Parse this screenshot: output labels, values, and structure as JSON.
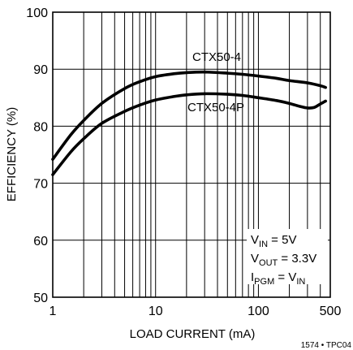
{
  "chart_data": {
    "type": "line",
    "xlabel": "LOAD CURRENT (mA)",
    "ylabel": "EFFICIENCY (%)",
    "x_scale": "log",
    "xlim": [
      1,
      500
    ],
    "ylim": [
      50,
      100
    ],
    "grid": true,
    "x_tick_labels": [
      "1",
      "10",
      "100",
      "500"
    ],
    "y_tick_labels": [
      "50",
      "60",
      "70",
      "80",
      "90",
      "100"
    ],
    "series": [
      {
        "name": "CTX50-4",
        "x": [
          1,
          1.5,
          2,
          3,
          5,
          7,
          10,
          15,
          20,
          30,
          50,
          70,
          100,
          150,
          200,
          300,
          400,
          450
        ],
        "y": [
          74.2,
          78.5,
          81.0,
          84.0,
          86.6,
          87.8,
          88.7,
          89.2,
          89.4,
          89.5,
          89.3,
          89.1,
          88.8,
          88.4,
          88.0,
          87.6,
          87.1,
          86.8
        ]
      },
      {
        "name": "CTX50-4P",
        "x": [
          1,
          1.5,
          2,
          3,
          5,
          7,
          10,
          15,
          20,
          30,
          50,
          70,
          100,
          150,
          200,
          250,
          300,
          350,
          400,
          450
        ],
        "y": [
          71.5,
          75.5,
          77.8,
          80.5,
          82.6,
          83.7,
          84.6,
          85.2,
          85.5,
          85.7,
          85.6,
          85.4,
          85.0,
          84.5,
          84.0,
          83.5,
          83.2,
          83.3,
          83.9,
          84.4
        ]
      }
    ],
    "annotations": [
      {
        "main": "V",
        "sub": "IN",
        "rest": " = 5V"
      },
      {
        "main": "V",
        "sub": "OUT",
        "rest": " = 3.3V"
      },
      {
        "main": "I",
        "sub": "PGM",
        "rest": " = V",
        "sub2": "IN"
      }
    ],
    "figure_id": "1574 • TPC04"
  }
}
